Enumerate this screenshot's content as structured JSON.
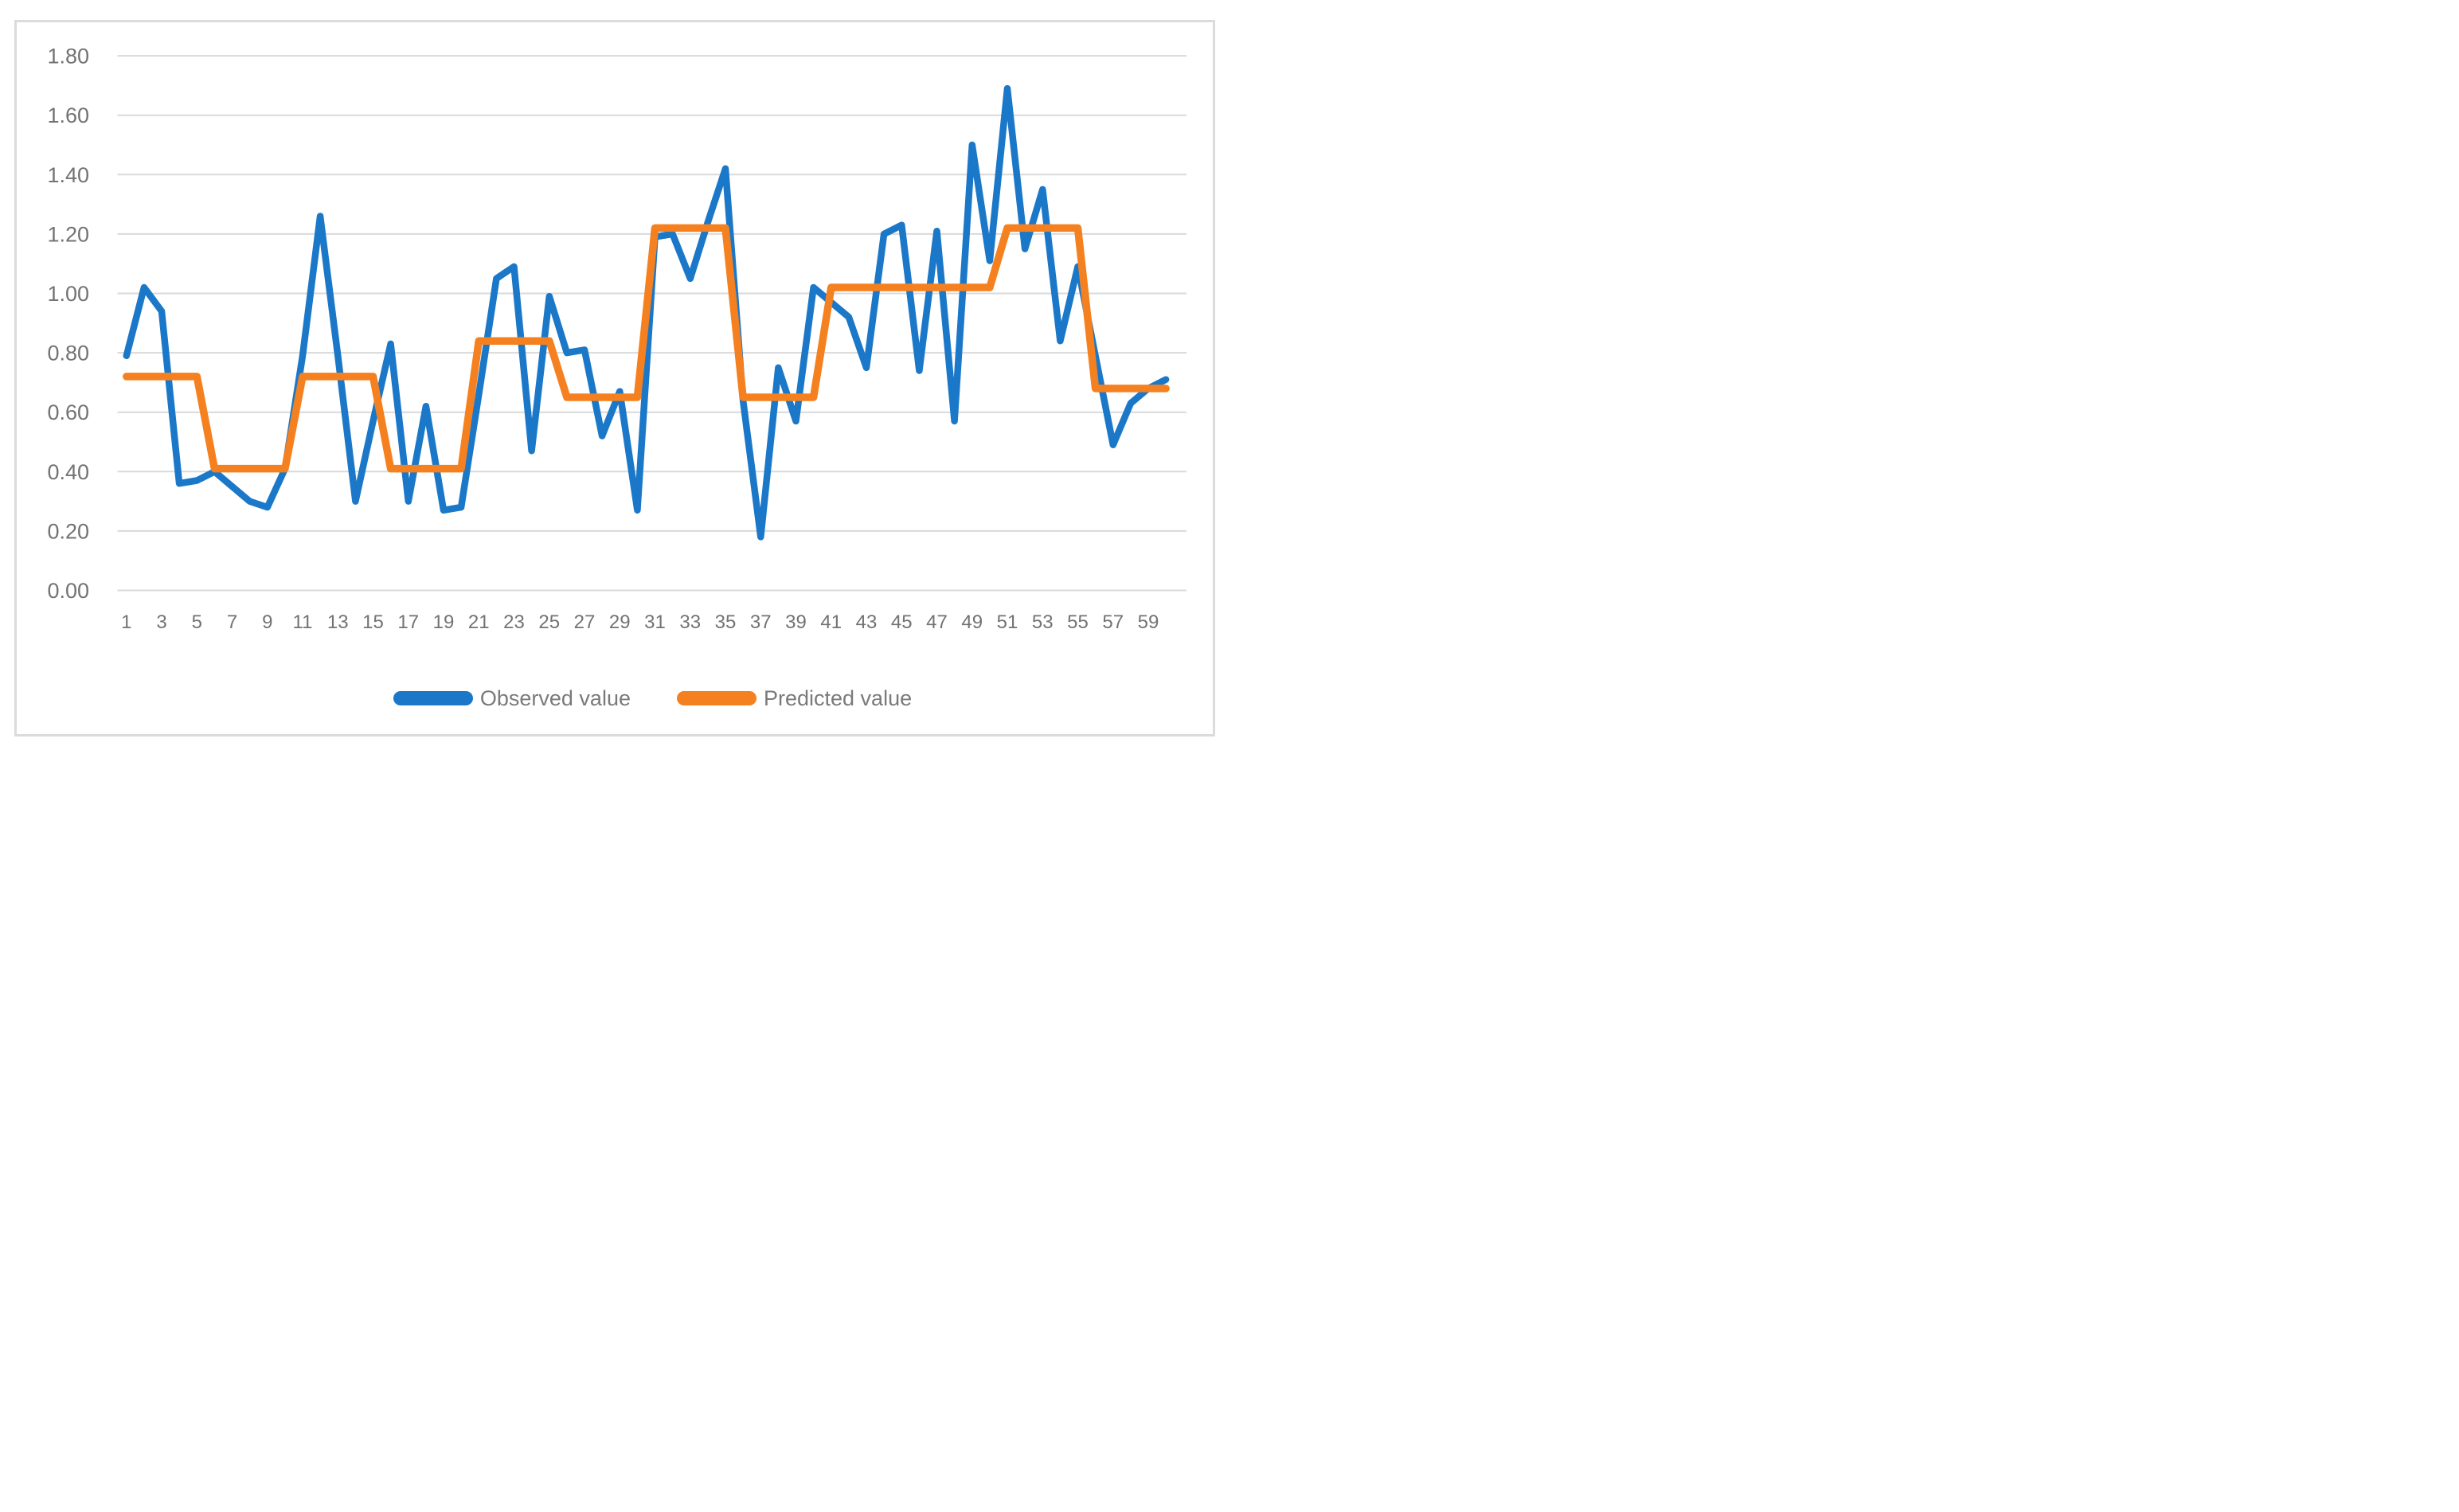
{
  "chart_data": {
    "type": "line",
    "title": "",
    "xlabel": "",
    "ylabel": "",
    "ylim": [
      0.0,
      1.8
    ],
    "y_tick_step": 0.2,
    "grid": true,
    "legend_position": "bottom",
    "y_tick_labels": [
      "0.00",
      "0.20",
      "0.40",
      "0.60",
      "0.80",
      "1.00",
      "1.20",
      "1.40",
      "1.60",
      "1.80"
    ],
    "x_tick_labels": [
      "1",
      "3",
      "5",
      "7",
      "9",
      "11",
      "13",
      "15",
      "17",
      "19",
      "21",
      "23",
      "25",
      "27",
      "29",
      "31",
      "33",
      "35",
      "37",
      "39",
      "41",
      "43",
      "45",
      "47",
      "49",
      "51",
      "53",
      "55",
      "57",
      "59"
    ],
    "x": [
      1,
      2,
      3,
      4,
      5,
      6,
      7,
      8,
      9,
      10,
      11,
      12,
      13,
      14,
      15,
      16,
      17,
      18,
      19,
      20,
      21,
      22,
      23,
      24,
      25,
      26,
      27,
      28,
      29,
      30,
      31,
      32,
      33,
      34,
      35,
      36,
      37,
      38,
      39,
      40,
      41,
      42,
      43,
      44,
      45,
      46,
      47,
      48,
      49,
      50,
      51,
      52,
      53,
      54,
      55,
      56,
      57,
      58,
      59,
      60
    ],
    "series": [
      {
        "name": "Observed value",
        "color": "#1B78C8",
        "values": [
          0.79,
          1.02,
          0.94,
          0.36,
          0.37,
          0.4,
          0.35,
          0.3,
          0.28,
          0.41,
          0.79,
          1.26,
          0.79,
          0.3,
          0.57,
          0.83,
          0.3,
          0.62,
          0.27,
          0.28,
          0.66,
          1.05,
          1.09,
          0.47,
          0.99,
          0.8,
          0.81,
          0.52,
          0.67,
          0.27,
          1.19,
          1.2,
          1.05,
          1.24,
          1.42,
          0.64,
          0.18,
          0.75,
          0.57,
          1.02,
          0.97,
          0.92,
          0.75,
          1.2,
          1.23,
          0.74,
          1.21,
          0.57,
          1.5,
          1.11,
          1.69,
          1.15,
          1.35,
          0.84,
          1.09,
          0.79,
          0.49,
          0.63,
          0.68,
          0.71
        ]
      },
      {
        "name": "Predicted value",
        "color": "#F5801F",
        "values": [
          0.72,
          0.72,
          0.72,
          0.72,
          0.72,
          0.41,
          0.41,
          0.41,
          0.41,
          0.41,
          0.72,
          0.72,
          0.72,
          0.72,
          0.72,
          0.41,
          0.41,
          0.41,
          0.41,
          0.41,
          0.84,
          0.84,
          0.84,
          0.84,
          0.84,
          0.65,
          0.65,
          0.65,
          0.65,
          0.65,
          1.22,
          1.22,
          1.22,
          1.22,
          1.22,
          0.65,
          0.65,
          0.65,
          0.65,
          0.65,
          1.02,
          1.02,
          1.02,
          1.02,
          1.02,
          1.02,
          1.02,
          1.02,
          1.02,
          1.02,
          1.22,
          1.22,
          1.22,
          1.22,
          1.22,
          0.68,
          0.68,
          0.68,
          0.68,
          0.68
        ]
      }
    ],
    "style": {
      "gridline_color": "#D9D9D9",
      "axis_label_color": "#737373",
      "legend_text_color": "#7A7A7A",
      "frame_border_color": "#DBDBDB",
      "background_color": "#FFFFFF"
    }
  }
}
